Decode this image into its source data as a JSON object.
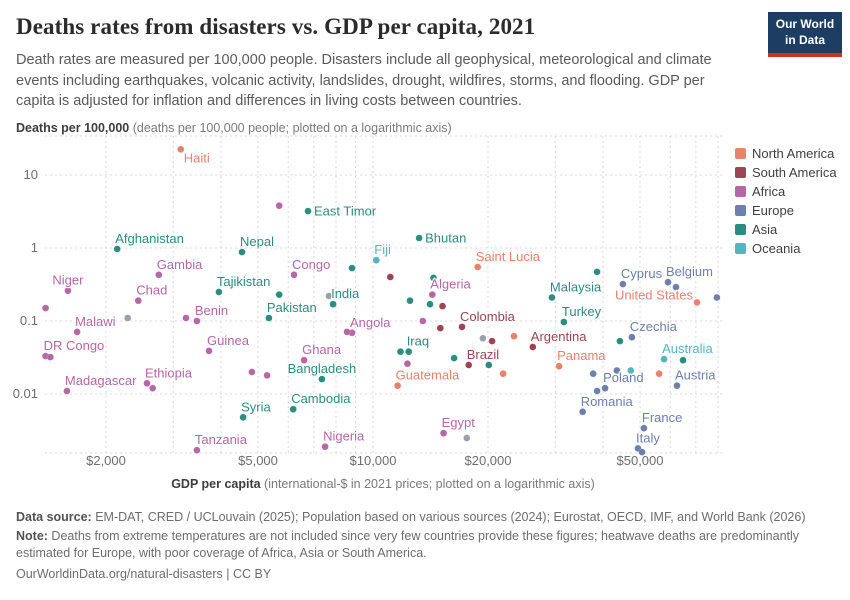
{
  "header": {
    "title": "Deaths rates from disasters vs. GDP per capita, 2021",
    "subtitle": "Death rates are measured per 100,000 people. Disasters include all geophysical, meteorological and climate events including earthquakes, volcanic activity, landslides, drought, wildfires, storms, and flooding. GDP per capita is adjusted for inflation and differences in living costs between countries.",
    "logo": {
      "line1": "Our World",
      "line2": "in Data"
    }
  },
  "colors": {
    "north_america": "#e8826c",
    "south_america": "#9e4351",
    "africa": "#b567a6",
    "europe": "#6d7fad",
    "asia": "#2b8c80",
    "oceania": "#52b5c0",
    "other": "#9aa0aa",
    "logo_navy": "#1d3d63",
    "logo_red": "#d22e21"
  },
  "legend": [
    {
      "key": "north_america",
      "label": "North America"
    },
    {
      "key": "south_america",
      "label": "South America"
    },
    {
      "key": "africa",
      "label": "Africa"
    },
    {
      "key": "europe",
      "label": "Europe"
    },
    {
      "key": "asia",
      "label": "Asia"
    },
    {
      "key": "oceania",
      "label": "Oceania"
    }
  ],
  "chart": {
    "y_axis_title_bold": "Deaths per 100,000",
    "y_axis_title_rest": " (deaths per 100,000 people; plotted on a logarithmic axis)",
    "x_axis_title_bold": "GDP per capita",
    "x_axis_title_rest": " (international-$ in 2021 prices; plotted on a logarithmic axis)",
    "x_ticks": [
      {
        "value": 2000,
        "label": "$2,000"
      },
      {
        "value": 5000,
        "label": "$5,000"
      },
      {
        "value": 10000,
        "label": "$10,000"
      },
      {
        "value": 20000,
        "label": "$20,000"
      },
      {
        "value": 50000,
        "label": "$50,000"
      }
    ],
    "y_ticks": [
      {
        "value": 10,
        "label": "10"
      },
      {
        "value": 1,
        "label": "1"
      },
      {
        "value": 0.1,
        "label": "0.1"
      },
      {
        "value": 0.01,
        "label": "0.01"
      }
    ]
  },
  "chart_data": {
    "type": "scatter",
    "title": "Deaths rates from disasters vs. GDP per capita, 2021",
    "xlabel": "GDP per capita (international-$ in 2021 prices)",
    "ylabel": "Deaths per 100,000 people",
    "x_scale": "log",
    "y_scale": "log",
    "x_range": [
      1400,
      83000
    ],
    "y_range": [
      0.0015,
      34
    ],
    "grid": true,
    "legend_position": "right",
    "x_gridlines": [
      2000,
      3000,
      4000,
      5000,
      6000,
      7000,
      8000,
      9000,
      10000,
      20000,
      30000,
      40000,
      50000,
      60000,
      70000,
      80000
    ],
    "y_gridlines": [
      10,
      1,
      0.1,
      0.01
    ],
    "points": [
      {
        "label": "Haiti",
        "continent": "north_america",
        "gdp": 3140,
        "rate": 22.5,
        "lp": "br"
      },
      {
        "label": "Afghanistan",
        "continent": "asia",
        "gdp": 2140,
        "rate": 0.97,
        "lp": "ar"
      },
      {
        "label": "East Timor",
        "continent": "asia",
        "gdp": 6760,
        "rate": 3.2,
        "lp": "r"
      },
      {
        "continent": "africa",
        "gdp": 5680,
        "rate": 3.8
      },
      {
        "label": "Nepal",
        "continent": "asia",
        "gdp": 4540,
        "rate": 0.88,
        "lp": "ar"
      },
      {
        "label": "Bhutan",
        "continent": "asia",
        "gdp": 13200,
        "rate": 1.37,
        "lp": "r"
      },
      {
        "label": "Gambia",
        "continent": "africa",
        "gdp": 2750,
        "rate": 0.43,
        "lp": "ar"
      },
      {
        "label": "Niger",
        "continent": "africa",
        "gdp": 1590,
        "rate": 0.26,
        "lp": "a"
      },
      {
        "label": "Chad",
        "continent": "africa",
        "gdp": 2430,
        "rate": 0.19,
        "lp": "ar"
      },
      {
        "label": "Tajikistan",
        "continent": "asia",
        "gdp": 3950,
        "rate": 0.25,
        "lp": "ar"
      },
      {
        "label": "Congo",
        "continent": "africa",
        "gdp": 6210,
        "rate": 0.43,
        "lp": "ar"
      },
      {
        "continent": "asia",
        "gdp": 8810,
        "rate": 0.53
      },
      {
        "label": "Fiji",
        "continent": "oceania",
        "gdp": 10200,
        "rate": 0.68,
        "lp": "ar"
      },
      {
        "continent": "south_america",
        "gdp": 11100,
        "rate": 0.4
      },
      {
        "label": "Saint Lucia",
        "continent": "north_america",
        "gdp": 18800,
        "rate": 0.55,
        "lp": "ar"
      },
      {
        "continent": "asia",
        "gdp": 14400,
        "rate": 0.39
      },
      {
        "label": "Algeria",
        "continent": "africa",
        "gdp": 14300,
        "rate": 0.23,
        "lp": "ar"
      },
      {
        "continent": "asia",
        "gdp": 12500,
        "rate": 0.19
      },
      {
        "continent": "asia",
        "gdp": 14100,
        "rate": 0.17
      },
      {
        "continent": "south_america",
        "gdp": 15200,
        "rate": 0.16
      },
      {
        "continent": "africa",
        "gdp": 13500,
        "rate": 0.1
      },
      {
        "continent": "south_america",
        "gdp": 15000,
        "rate": 0.08
      },
      {
        "label": "Colombia",
        "continent": "south_america",
        "gdp": 17100,
        "rate": 0.083,
        "lp": "ar"
      },
      {
        "label": "India",
        "continent": "asia",
        "gdp": 7860,
        "rate": 0.17,
        "lp": "ar"
      },
      {
        "continent": "other",
        "gdp": 7670,
        "rate": 0.22
      },
      {
        "label": "Pakistan",
        "continent": "asia",
        "gdp": 5340,
        "rate": 0.11,
        "lp": "ar"
      },
      {
        "continent": "asia",
        "gdp": 5680,
        "rate": 0.23
      },
      {
        "label": "Benin",
        "continent": "africa",
        "gdp": 3460,
        "rate": 0.1,
        "lp": "ar"
      },
      {
        "continent": "africa",
        "gdp": 3240,
        "rate": 0.11
      },
      {
        "continent": "other",
        "gdp": 2280,
        "rate": 0.11
      },
      {
        "label": "Malawi",
        "continent": "africa",
        "gdp": 1680,
        "rate": 0.071,
        "lp": "ar"
      },
      {
        "continent": "africa",
        "gdp": 1390,
        "rate": 0.15
      },
      {
        "label": "Angola",
        "continent": "africa",
        "gdp": 8810,
        "rate": 0.069,
        "lp": "ar"
      },
      {
        "continent": "africa",
        "gdp": 8550,
        "rate": 0.071
      },
      {
        "label": "DR Congo",
        "continent": "africa",
        "gdp": 1390,
        "rate": 0.033,
        "lp": "ar"
      },
      {
        "continent": "africa",
        "gdp": 1430,
        "rate": 0.032
      },
      {
        "label": "Guinea",
        "continent": "africa",
        "gdp": 3720,
        "rate": 0.039,
        "lp": "ar"
      },
      {
        "label": "Ghana",
        "continent": "africa",
        "gdp": 6600,
        "rate": 0.029,
        "lp": "ar"
      },
      {
        "label": "Iraq",
        "continent": "asia",
        "gdp": 12400,
        "rate": 0.038,
        "lp": "ar"
      },
      {
        "continent": "asia",
        "gdp": 11800,
        "rate": 0.038
      },
      {
        "continent": "africa",
        "gdp": 12300,
        "rate": 0.026
      },
      {
        "continent": "asia",
        "gdp": 16300,
        "rate": 0.031
      },
      {
        "label": "Brazil",
        "continent": "south_america",
        "gdp": 17800,
        "rate": 0.025,
        "lp": "ar"
      },
      {
        "continent": "asia",
        "gdp": 20100,
        "rate": 0.025
      },
      {
        "continent": "north_america",
        "gdp": 21900,
        "rate": 0.019
      },
      {
        "label": "Ethiopia",
        "continent": "africa",
        "gdp": 2560,
        "rate": 0.014,
        "lp": "ar"
      },
      {
        "continent": "africa",
        "gdp": 2650,
        "rate": 0.012
      },
      {
        "label": "Madagascar",
        "continent": "africa",
        "gdp": 1580,
        "rate": 0.011,
        "lp": "ar"
      },
      {
        "continent": "africa",
        "gdp": 4820,
        "rate": 0.02
      },
      {
        "continent": "africa",
        "gdp": 5280,
        "rate": 0.018
      },
      {
        "label": "Bangladesh",
        "continent": "asia",
        "gdp": 7350,
        "rate": 0.016,
        "lp": "a"
      },
      {
        "label": "Guatemala",
        "continent": "north_america",
        "gdp": 11600,
        "rate": 0.013,
        "lp": "ar"
      },
      {
        "label": "Cambodia",
        "continent": "asia",
        "gdp": 6180,
        "rate": 0.0062,
        "lp": "ar"
      },
      {
        "label": "Syria",
        "continent": "asia",
        "gdp": 4570,
        "rate": 0.0048,
        "lp": "ar"
      },
      {
        "label": "Tanzania",
        "continent": "africa",
        "gdp": 3460,
        "rate": 0.0017,
        "lp": "ar"
      },
      {
        "label": "Nigeria",
        "continent": "africa",
        "gdp": 7490,
        "rate": 0.0019,
        "lp": "ar"
      },
      {
        "label": "Egypt",
        "continent": "africa",
        "gdp": 15300,
        "rate": 0.0029,
        "lp": "ar"
      },
      {
        "continent": "other",
        "gdp": 17600,
        "rate": 0.0025
      },
      {
        "label": "Malaysia",
        "continent": "asia",
        "gdp": 29400,
        "rate": 0.21,
        "lp": "ar"
      },
      {
        "continent": "asia",
        "gdp": 38600,
        "rate": 0.47
      },
      {
        "label": "Cyprus",
        "continent": "europe",
        "gdp": 45100,
        "rate": 0.32,
        "lp": "ar"
      },
      {
        "label": "Belgium",
        "continent": "europe",
        "gdp": 59200,
        "rate": 0.34,
        "lp": "ar"
      },
      {
        "continent": "europe",
        "gdp": 62100,
        "rate": 0.29
      },
      {
        "label": "United States",
        "continent": "north_america",
        "gdp": 70500,
        "rate": 0.18,
        "lp": "al"
      },
      {
        "continent": "europe",
        "gdp": 79500,
        "rate": 0.21
      },
      {
        "label": "Turkey",
        "continent": "asia",
        "gdp": 31600,
        "rate": 0.097,
        "lp": "ar"
      },
      {
        "label": "Czechia",
        "continent": "europe",
        "gdp": 47600,
        "rate": 0.06,
        "lp": "ar"
      },
      {
        "continent": "asia",
        "gdp": 44300,
        "rate": 0.053
      },
      {
        "label": "Argentina",
        "continent": "south_america",
        "gdp": 26200,
        "rate": 0.044,
        "lp": "ar"
      },
      {
        "continent": "other",
        "gdp": 19400,
        "rate": 0.058
      },
      {
        "continent": "south_america",
        "gdp": 20500,
        "rate": 0.053
      },
      {
        "continent": "north_america",
        "gdp": 23400,
        "rate": 0.062
      },
      {
        "label": "Panama",
        "continent": "north_america",
        "gdp": 30700,
        "rate": 0.024,
        "lp": "ar"
      },
      {
        "label": "Australia",
        "continent": "oceania",
        "gdp": 57800,
        "rate": 0.03,
        "lp": "ar"
      },
      {
        "continent": "asia",
        "gdp": 64800,
        "rate": 0.029
      },
      {
        "continent": "europe",
        "gdp": 37700,
        "rate": 0.019
      },
      {
        "continent": "europe",
        "gdp": 43500,
        "rate": 0.021
      },
      {
        "continent": "oceania",
        "gdp": 47300,
        "rate": 0.021
      },
      {
        "continent": "north_america",
        "gdp": 56100,
        "rate": 0.019
      },
      {
        "label": "Austria",
        "continent": "europe",
        "gdp": 62500,
        "rate": 0.013,
        "lp": "ar"
      },
      {
        "label": "Poland",
        "continent": "europe",
        "gdp": 40500,
        "rate": 0.012,
        "lp": "ar"
      },
      {
        "continent": "europe",
        "gdp": 38600,
        "rate": 0.011
      },
      {
        "label": "Romania",
        "continent": "europe",
        "gdp": 35400,
        "rate": 0.0057,
        "lp": "ar"
      },
      {
        "label": "France",
        "continent": "europe",
        "gdp": 51200,
        "rate": 0.0034,
        "lp": "ar"
      },
      {
        "label": "Italy",
        "continent": "europe",
        "gdp": 49400,
        "rate": 0.0018,
        "lp": "ar"
      },
      {
        "continent": "europe",
        "gdp": 50600,
        "rate": 0.0016
      }
    ]
  },
  "footer": {
    "source_prefix": "Data source:",
    "source_text": " EM-DAT, CRED / UCLouvain (2025); Population based on various sources (2024); Eurostat, OECD, IMF, and World Bank (2026)",
    "note_prefix": "Note:",
    "note_text": " Deaths from extreme temperatures are not included since very few countries provide these figures; heatwave deaths are predominantly estimated for Europe, with poor coverage of Africa, Asia or South America.",
    "link": "OurWorldinData.org/natural-disasters | CC BY"
  }
}
